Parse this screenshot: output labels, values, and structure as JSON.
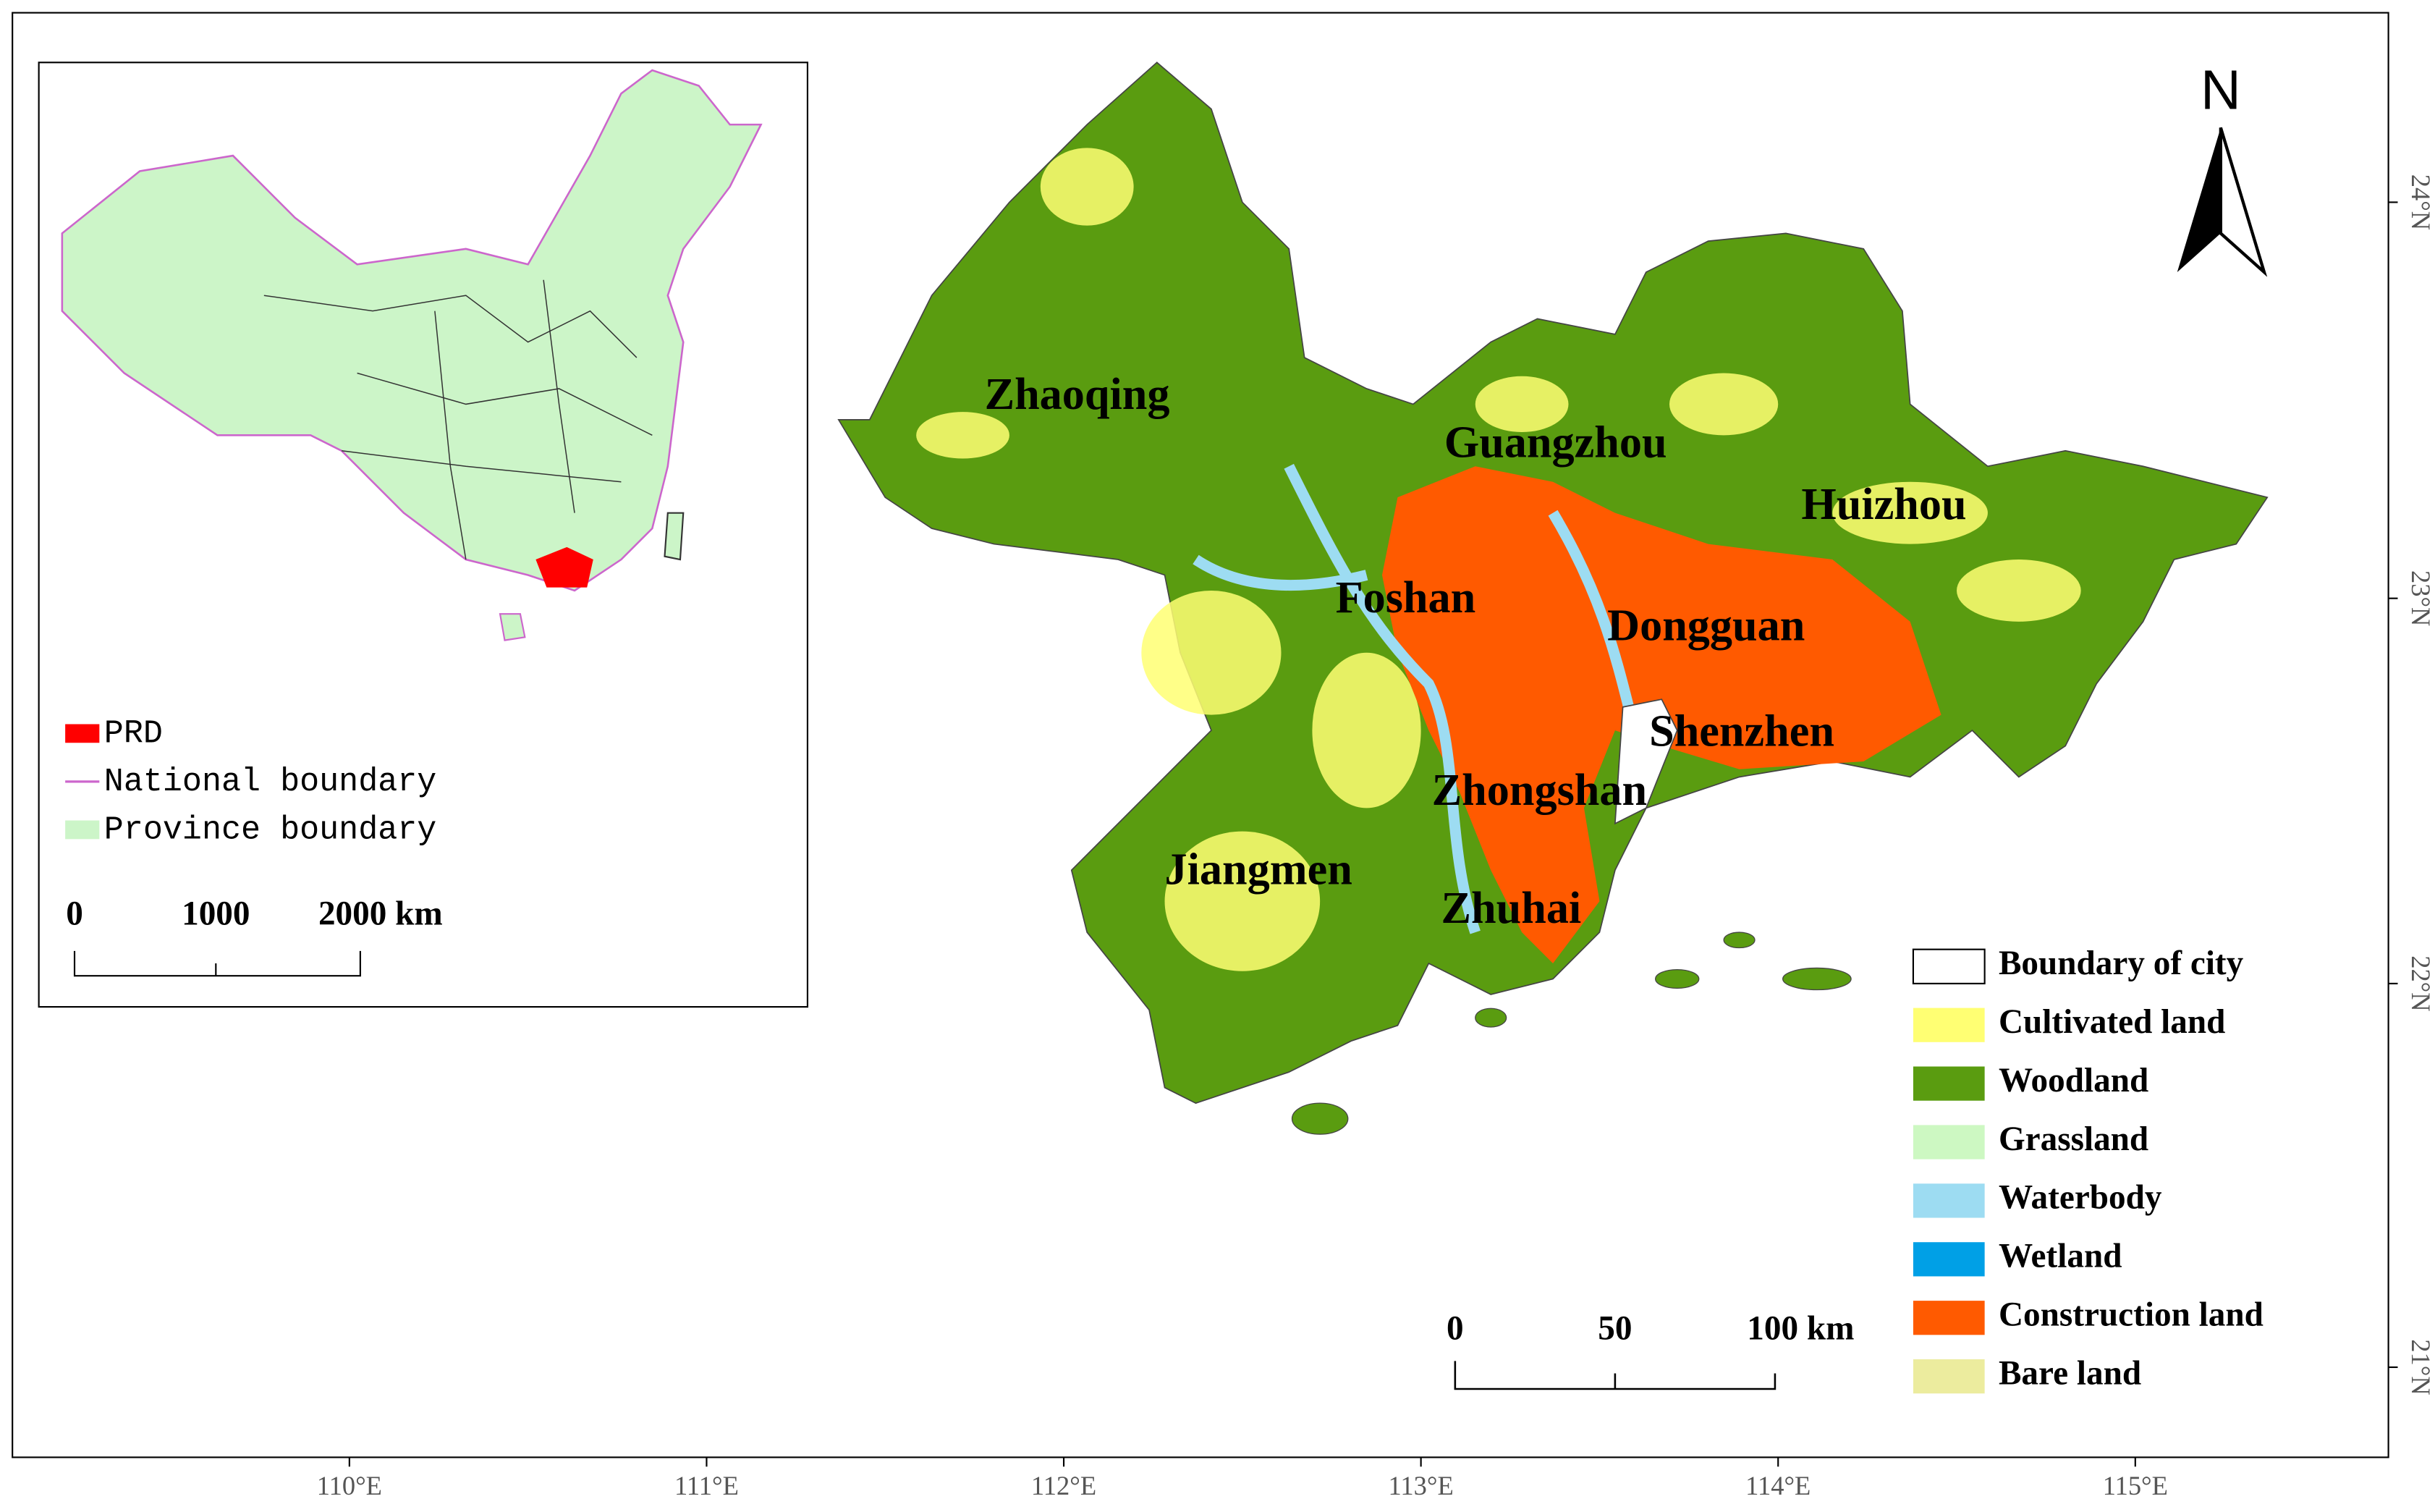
{
  "inset": {
    "legend": [
      {
        "label": "PRD",
        "color": "#ff0000"
      },
      {
        "label": "National boundary",
        "color": "#cc66cc"
      },
      {
        "label": "Province boundary",
        "color": "#ccf5c8"
      }
    ],
    "scale": [
      "0",
      "1000",
      "2000 km"
    ]
  },
  "map": {
    "north": "N",
    "cities": [
      "Zhaoqing",
      "Guangzhou",
      "Huizhou",
      "Foshan",
      "Dongguan",
      "Shenzhen",
      "Zhongshan",
      "Jiangmen",
      "Zhuhai"
    ],
    "legend": [
      {
        "label": "Boundary of city",
        "color": "#ffffff"
      },
      {
        "label": "Cultivated land",
        "color": "#ffff73"
      },
      {
        "label": "Woodland",
        "color": "#5a9c10"
      },
      {
        "label": "Grassland",
        "color": "#cdf8c2"
      },
      {
        "label": "Waterbody",
        "color": "#9ddcf2"
      },
      {
        "label": "Wetland",
        "color": "#00a0e6"
      },
      {
        "label": "Construction land",
        "color": "#ff5a00"
      },
      {
        "label": "Bare land",
        "color": "#ecec9e"
      }
    ],
    "scale": [
      "0",
      "50",
      "100 km"
    ],
    "lon_labels": [
      "110°E",
      "111°E",
      "112°E",
      "113°E",
      "114°E",
      "115°E"
    ],
    "lat_labels": [
      "24°N",
      "23°N",
      "22°N",
      "21°N"
    ]
  }
}
